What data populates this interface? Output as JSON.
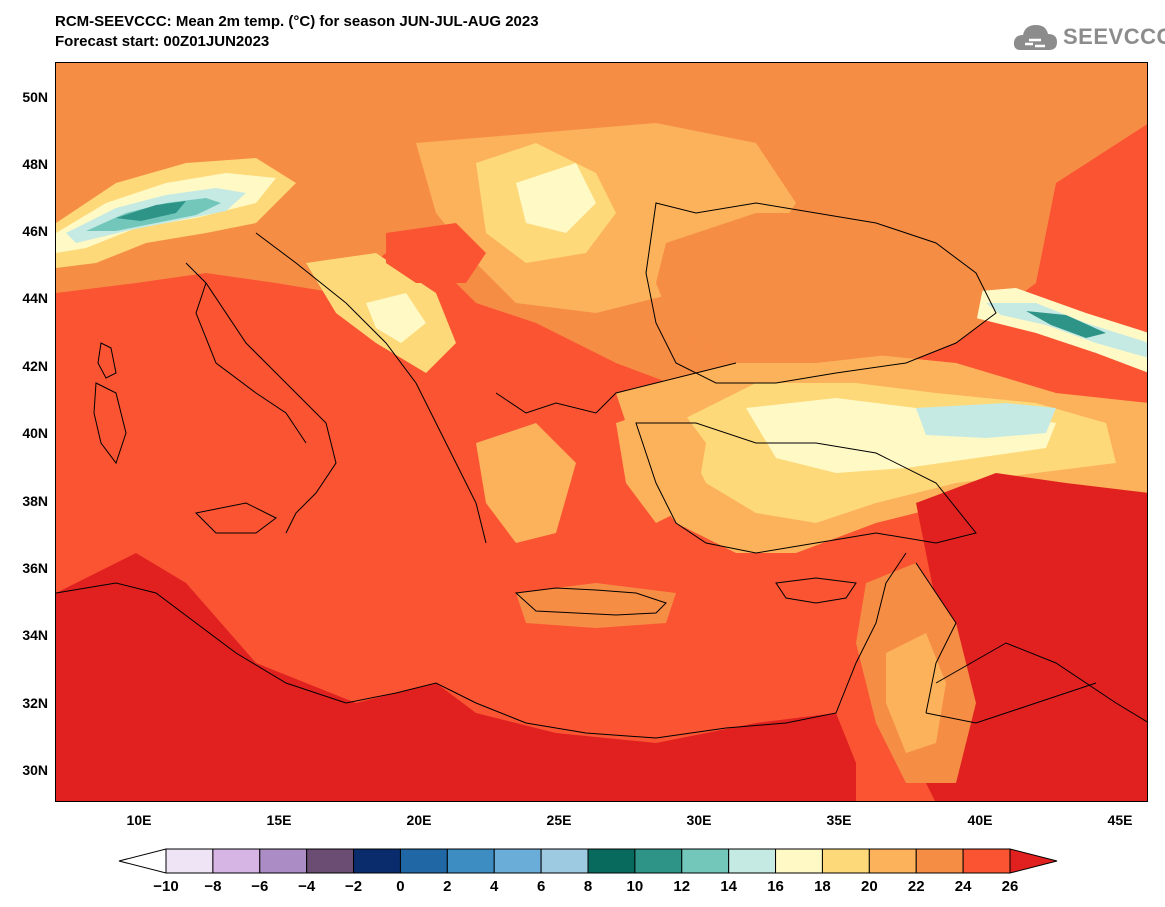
{
  "header": {
    "title_line1": "RCM-SEEVCCC: Mean 2m temp. (°C) for season JUN-JUL-AUG 2023",
    "title_line2": "Forecast start: 00Z01JUN2023",
    "logo_text": "SEEVCCC"
  },
  "axes": {
    "lat_labels": [
      "50N",
      "48N",
      "46N",
      "44N",
      "42N",
      "40N",
      "38N",
      "36N",
      "34N",
      "32N",
      "30N"
    ],
    "lon_labels": [
      "10E",
      "15E",
      "20E",
      "25E",
      "30E",
      "35E",
      "40E",
      "45E"
    ]
  },
  "colorbar": {
    "labels": [
      "-10",
      "-8",
      "-6",
      "-4",
      "-2",
      "0",
      "2",
      "4",
      "6",
      "8",
      "10",
      "12",
      "14",
      "16",
      "18",
      "20",
      "22",
      "24",
      "26"
    ],
    "colors": [
      "#ffffff",
      "#efe3f6",
      "#d6b4e4",
      "#ac8cc4",
      "#6b4c72",
      "#0b2c6c",
      "#2067a6",
      "#3d8dc2",
      "#6aadd8",
      "#9ecae1",
      "#086a5c",
      "#2f9488",
      "#72c7ba",
      "#c5e9e3",
      "#fff9c6",
      "#fed979",
      "#fcb25a",
      "#f68d45",
      "#fa5432",
      "#e02120"
    ]
  }
}
